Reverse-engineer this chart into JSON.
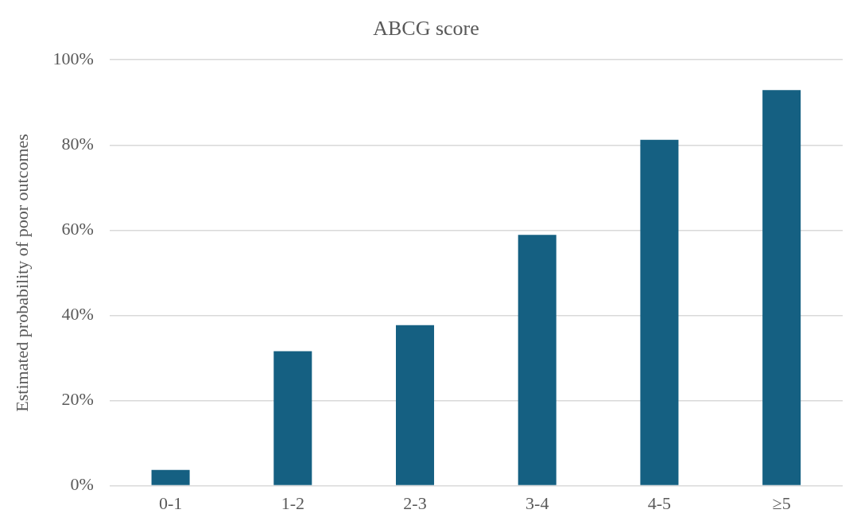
{
  "chart_data": {
    "type": "bar",
    "title": "ABCG score",
    "ylabel": "Estimated probability of poor outcomes",
    "categories": [
      "0-1",
      "1-2",
      "2-3",
      "3-4",
      "4-5",
      "≥5"
    ],
    "values": [
      3.7,
      31.6,
      37.7,
      58.9,
      81.2,
      92.9
    ],
    "color": "#156082",
    "ylim": [
      0,
      100
    ],
    "yticks": [
      {
        "value": 0,
        "label": "0%"
      },
      {
        "value": 20,
        "label": "20%"
      },
      {
        "value": 40,
        "label": "40%"
      },
      {
        "value": 60,
        "label": "60%"
      },
      {
        "value": 80,
        "label": "80%"
      },
      {
        "value": 100,
        "label": "100%"
      }
    ],
    "grid": "y",
    "legend": false
  }
}
